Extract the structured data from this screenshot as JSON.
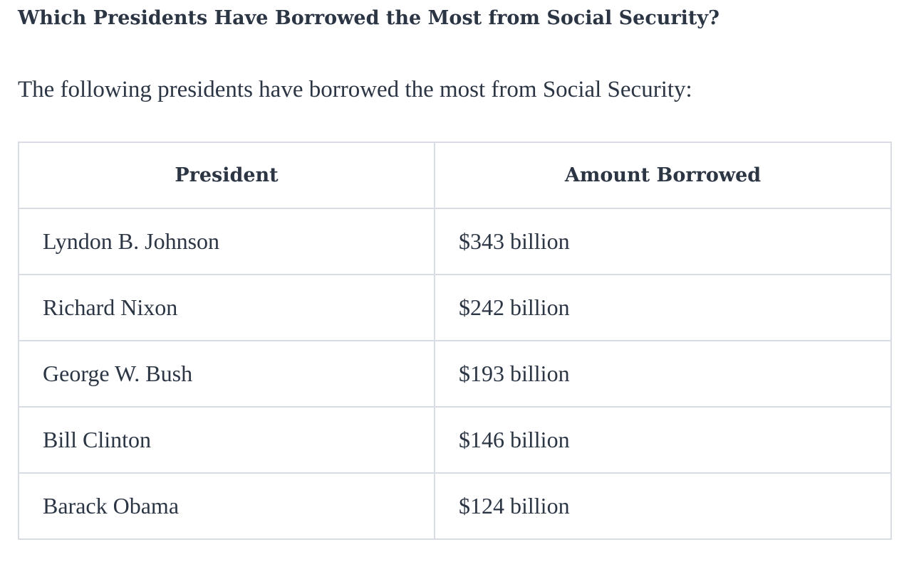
{
  "heading": "Which Presidents Have Borrowed the Most from Social Security?",
  "intro": "The following presidents have borrowed the most from Social Security:",
  "table": {
    "headers": [
      "President",
      "Amount Borrowed"
    ],
    "rows": [
      [
        "Lyndon B. Johnson",
        "$343 billion"
      ],
      [
        "Richard Nixon",
        "$242 billion"
      ],
      [
        "George W. Bush",
        "$193 billion"
      ],
      [
        "Bill Clinton",
        "$146 billion"
      ],
      [
        "Barack Obama",
        "$124 billion"
      ]
    ]
  },
  "colors": {
    "text": "#2b3544",
    "border": "#d8dce4",
    "background": "#ffffff"
  }
}
